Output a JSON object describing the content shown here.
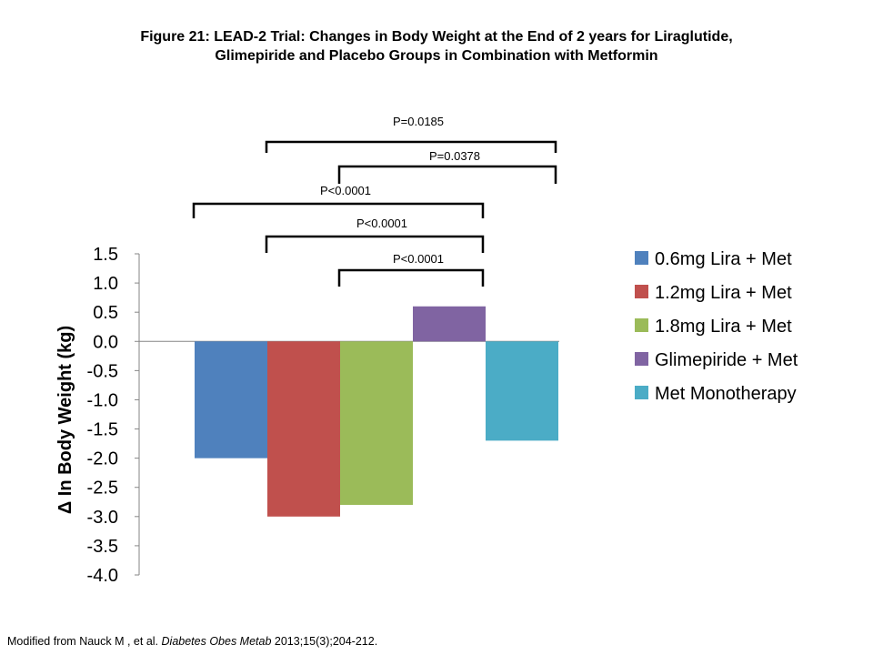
{
  "title": {
    "line1": "Figure 21: LEAD-2 Trial: Changes in Body Weight at the End of 2 years for Liraglutide,",
    "line2": "Glimepiride and Placebo Groups in Combination with Metformin"
  },
  "footnote": {
    "prefix": "Modified from Nauck M , et al. ",
    "journal": "Diabetes Obes Metab",
    "suffix": " 2013;15(3);204-212."
  },
  "chart_data": {
    "type": "bar",
    "ylabel": "Δ In Body Weight (kg)",
    "xlabel": "",
    "ylim": [
      -4.0,
      1.5
    ],
    "yticks": [
      "1.5",
      "1.0",
      "0.5",
      "0.0",
      "-0.5",
      "-1.0",
      "-1.5",
      "-2.0",
      "-2.5",
      "-3.0",
      "-3.5",
      "-4.0"
    ],
    "grid": false,
    "legend_position": "right",
    "series": [
      {
        "name": "0.6mg Lira + Met",
        "value": -2.0,
        "color": "#4f81bd"
      },
      {
        "name": "1.2mg Lira + Met",
        "value": -3.0,
        "color": "#c0504d"
      },
      {
        "name": "1.8mg Lira + Met",
        "value": -2.8,
        "color": "#9bbb59"
      },
      {
        "name": "Glimepiride + Met",
        "value": 0.6,
        "color": "#8064a2"
      },
      {
        "name": "Met Monotherapy",
        "value": -1.7,
        "color": "#4bacc6"
      }
    ],
    "comparisons": [
      {
        "label": "P=0.0185",
        "from": 1,
        "to": 4
      },
      {
        "label": "P=0.0378",
        "from": 2,
        "to": 4
      },
      {
        "label": "P<0.0001",
        "from": 0,
        "to": 3
      },
      {
        "label": "P<0.0001",
        "from": 1,
        "to": 3
      },
      {
        "label": "P<0.0001",
        "from": 2,
        "to": 3
      }
    ]
  }
}
